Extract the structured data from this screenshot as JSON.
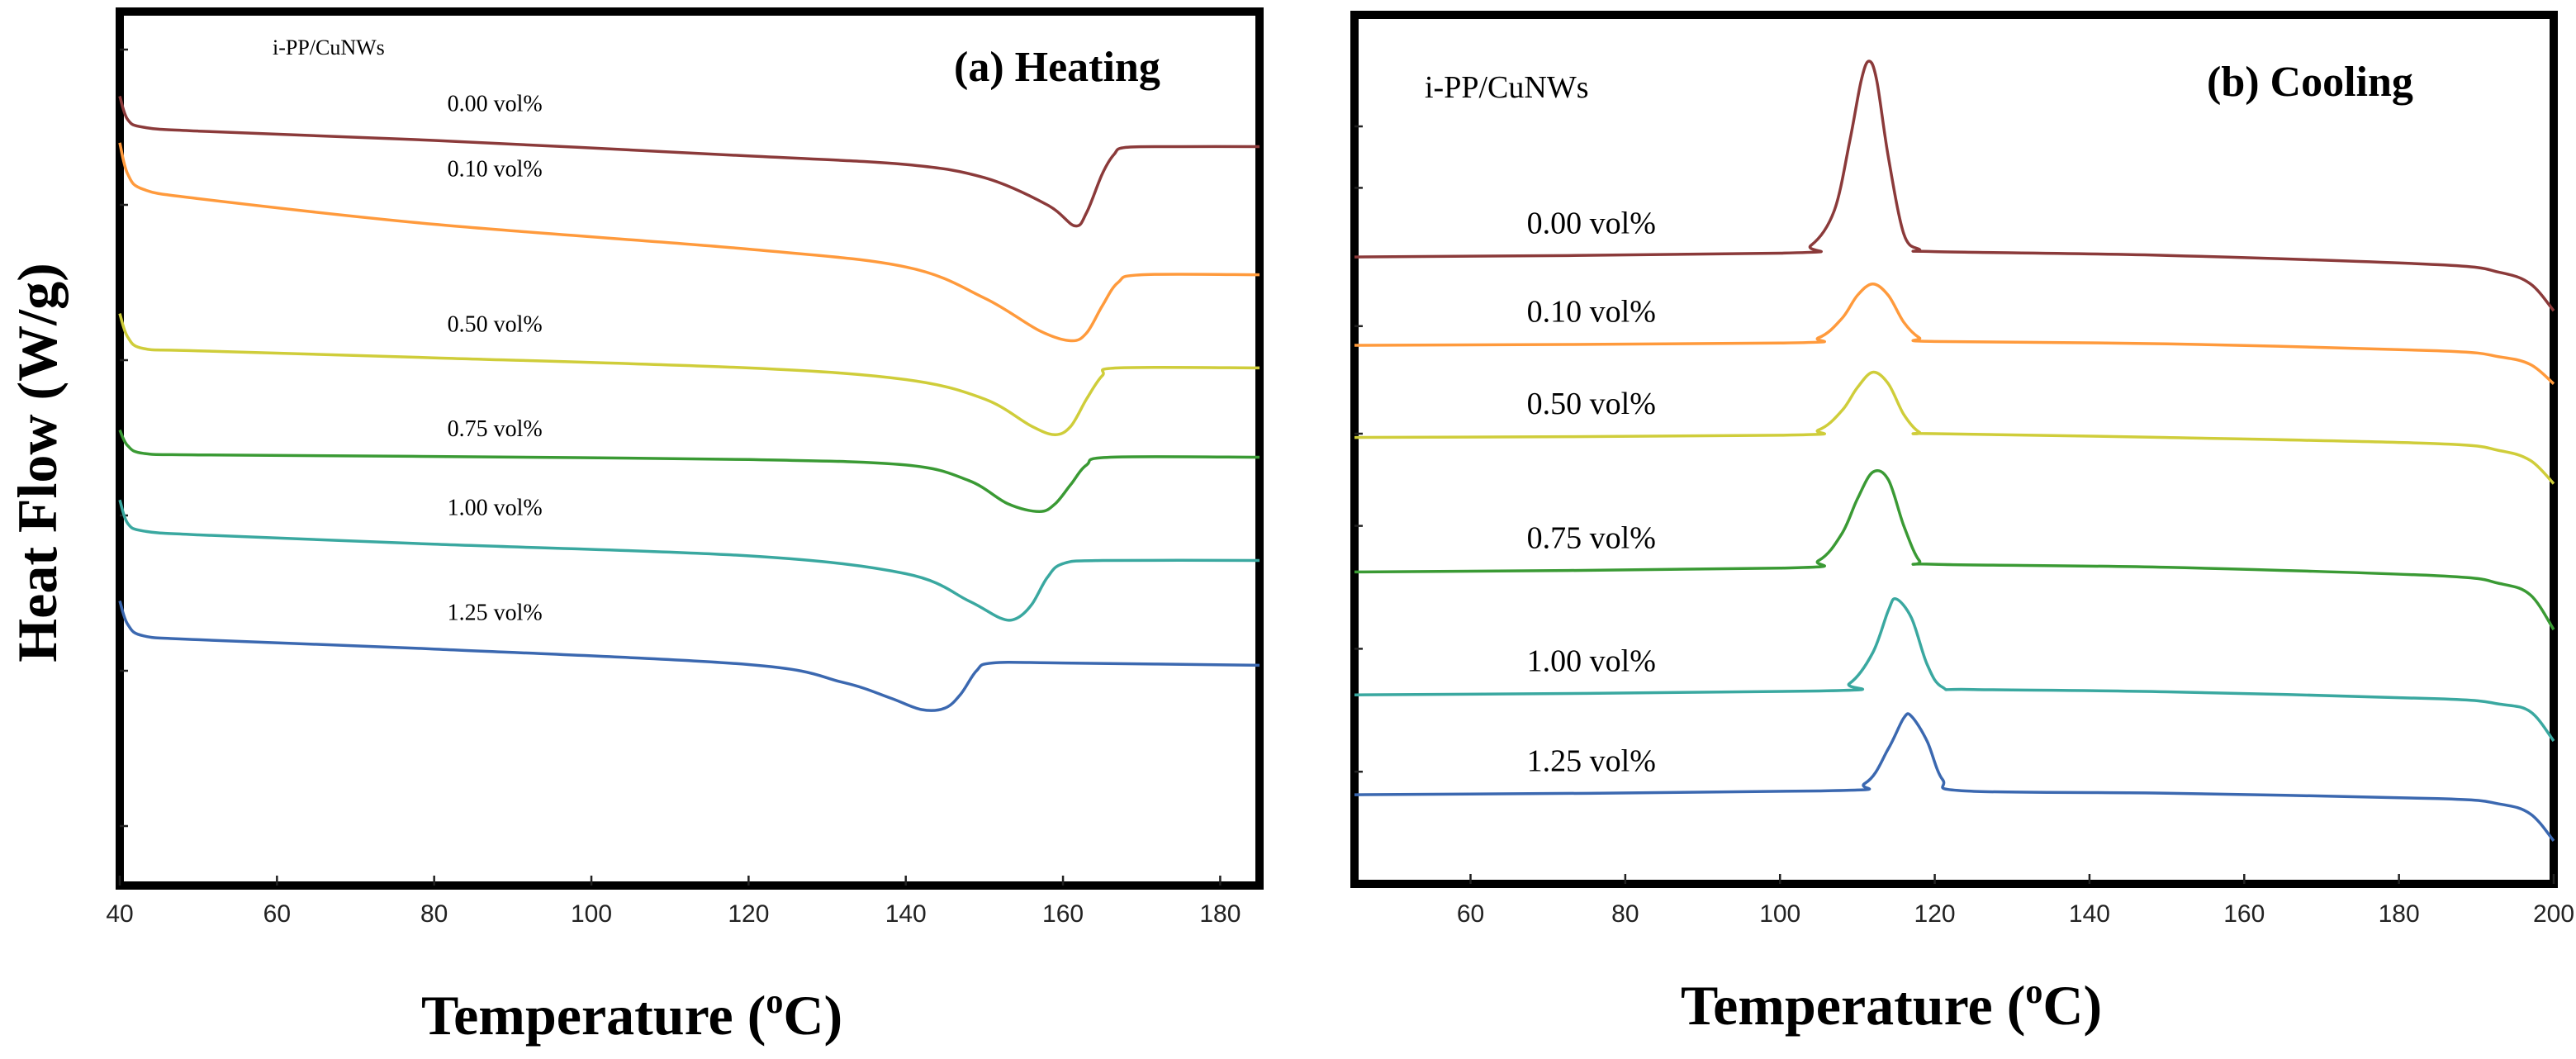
{
  "chart_data": [
    {
      "type": "line",
      "panel": "a",
      "title": "(a) Heating",
      "system_label": "i-PP/CuNWs",
      "xlabel": "Temperature (",
      "xlabel_sup": "o",
      "xlabel_unit": "C)",
      "ylabel": "Heat Flow (W/g)",
      "xlim": [
        40,
        185
      ],
      "x_ticks": [
        "40",
        "60",
        "80",
        "100",
        "120",
        "140",
        "160",
        "180"
      ],
      "x_tick_values": [
        40,
        60,
        80,
        100,
        120,
        140,
        160,
        180
      ],
      "y_units": "relative heat flow (offset, endo down)",
      "ylim": [
        0,
        100
      ],
      "y_minor_ticks": [
        0,
        20,
        40,
        60,
        80,
        100
      ],
      "series": [
        {
          "name": "0.00 vol%",
          "color": "#8b3a3a",
          "points": [
            [
              40,
              94
            ],
            [
              41,
              91
            ],
            [
              43,
              90
            ],
            [
              50,
              89.5
            ],
            [
              80,
              88.3
            ],
            [
              120,
              86.3
            ],
            [
              140,
              85.2
            ],
            [
              150,
              83.5
            ],
            [
              158,
              80
            ],
            [
              161.5,
              77.3
            ],
            [
              163,
              79
            ],
            [
              165,
              84
            ],
            [
              166.5,
              86.5
            ],
            [
              168,
              87.4
            ],
            [
              175,
              87.5
            ],
            [
              185,
              87.5
            ]
          ]
        },
        {
          "name": "0.10 vol%",
          "color": "#ff9a3c",
          "points": [
            [
              40,
              88
            ],
            [
              41,
              84
            ],
            [
              43,
              82
            ],
            [
              50,
              80.8
            ],
            [
              80,
              77.5
            ],
            [
              120,
              74.3
            ],
            [
              140,
              72
            ],
            [
              150,
              68
            ],
            [
              157,
              63.8
            ],
            [
              161,
              62.5
            ],
            [
              163,
              63.5
            ],
            [
              165,
              67
            ],
            [
              167,
              70
            ],
            [
              170,
              71
            ],
            [
              185,
              71
            ]
          ]
        },
        {
          "name": "0.50 vol%",
          "color": "#cfcd3a",
          "points": [
            [
              40,
              66
            ],
            [
              41,
              63
            ],
            [
              43,
              61.5
            ],
            [
              50,
              61.2
            ],
            [
              80,
              60.3
            ],
            [
              120,
              59
            ],
            [
              140,
              57.5
            ],
            [
              150,
              55
            ],
            [
              156,
              51.5
            ],
            [
              159,
              50.4
            ],
            [
              161,
              51.5
            ],
            [
              163,
              55
            ],
            [
              165,
              58
            ],
            [
              167,
              59
            ],
            [
              185,
              59
            ]
          ]
        },
        {
          "name": "0.75 vol%",
          "color": "#3a9a34",
          "points": [
            [
              40,
              51
            ],
            [
              41,
              49
            ],
            [
              43,
              48
            ],
            [
              50,
              47.8
            ],
            [
              80,
              47.6
            ],
            [
              120,
              47.2
            ],
            [
              140,
              46.5
            ],
            [
              148,
              44.5
            ],
            [
              153,
              41.5
            ],
            [
              157,
              40.5
            ],
            [
              159,
              41.5
            ],
            [
              161,
              44
            ],
            [
              163,
              46.5
            ],
            [
              166,
              47.5
            ],
            [
              185,
              47.5
            ]
          ]
        },
        {
          "name": "1.00 vol%",
          "color": "#3aa8a0",
          "points": [
            [
              40,
              42
            ],
            [
              41,
              39
            ],
            [
              43,
              38
            ],
            [
              50,
              37.5
            ],
            [
              80,
              36.3
            ],
            [
              120,
              34.8
            ],
            [
              140,
              32.5
            ],
            [
              148,
              29
            ],
            [
              152,
              26.8
            ],
            [
              154,
              26.7
            ],
            [
              156,
              28.5
            ],
            [
              158,
              32
            ],
            [
              160,
              33.8
            ],
            [
              165,
              34.2
            ],
            [
              185,
              34.2
            ]
          ]
        },
        {
          "name": "1.25 vol%",
          "color": "#3b68b0",
          "points": [
            [
              40,
              29
            ],
            [
              41,
              26
            ],
            [
              43,
              24.5
            ],
            [
              50,
              24
            ],
            [
              80,
              22.8
            ],
            [
              120,
              20.8
            ],
            [
              132,
              18.5
            ],
            [
              138,
              16.5
            ],
            [
              142,
              15
            ],
            [
              145,
              15.2
            ],
            [
              147,
              17
            ],
            [
              149,
              20
            ],
            [
              151,
              21
            ],
            [
              160,
              21
            ],
            [
              185,
              20.7
            ]
          ]
        }
      ],
      "series_label_x": [
        47,
        47,
        47,
        47,
        47,
        47
      ]
    },
    {
      "type": "line",
      "panel": "b",
      "title": "(b) Cooling",
      "system_label": "i-PP/CuNWs",
      "xlabel": "Temperature (",
      "xlabel_sup": "o",
      "xlabel_unit": "C)",
      "xlim": [
        45,
        200
      ],
      "x_ticks": [
        "60",
        "80",
        "100",
        "120",
        "140",
        "160",
        "180",
        "200"
      ],
      "x_tick_values": [
        60,
        80,
        100,
        120,
        140,
        160,
        180,
        200
      ],
      "y_units": "relative heat flow (offset, exo up)",
      "ylim": [
        0,
        100
      ],
      "y_minor_ticks": [
        6,
        22,
        38,
        50,
        64,
        82,
        90
      ],
      "series": [
        {
          "name": "0.00 vol%",
          "color": "#8b3a3a",
          "points": [
            [
              45,
              73
            ],
            [
              100,
              73.5
            ],
            [
              104,
              74.5
            ],
            [
              107,
              79
            ],
            [
              109,
              88
            ],
            [
              110.5,
              96
            ],
            [
              111.5,
              98.5
            ],
            [
              112.5,
              96
            ],
            [
              114,
              86
            ],
            [
              116,
              76
            ],
            [
              118,
              74
            ],
            [
              120,
              73.7
            ],
            [
              150,
              73.2
            ],
            [
              185,
              72
            ],
            [
              193,
              71
            ],
            [
              197,
              69.5
            ],
            [
              200,
              66
            ]
          ]
        },
        {
          "name": "0.10 vol%",
          "color": "#ff9a3c",
          "points": [
            [
              45,
              61.5
            ],
            [
              100,
              61.8
            ],
            [
              105,
              62.5
            ],
            [
              108,
              65
            ],
            [
              110,
              68
            ],
            [
              112,
              69.5
            ],
            [
              114,
              68
            ],
            [
              116,
              64.5
            ],
            [
              118,
              62.5
            ],
            [
              120,
              62
            ],
            [
              150,
              61.7
            ],
            [
              185,
              60.8
            ],
            [
              193,
              60
            ],
            [
              197,
              59
            ],
            [
              200,
              56.5
            ]
          ]
        },
        {
          "name": "0.50 vol%",
          "color": "#cfcd3a",
          "points": [
            [
              45,
              49.5
            ],
            [
              100,
              49.8
            ],
            [
              105,
              50.5
            ],
            [
              108,
              53
            ],
            [
              110,
              56
            ],
            [
              112,
              58
            ],
            [
              114,
              56.5
            ],
            [
              116,
              52.5
            ],
            [
              118,
              50.2
            ],
            [
              120,
              50
            ],
            [
              150,
              49.5
            ],
            [
              185,
              48.7
            ],
            [
              193,
              47.8
            ],
            [
              197,
              46.5
            ],
            [
              200,
              43.5
            ]
          ]
        },
        {
          "name": "0.75 vol%",
          "color": "#3a9a34",
          "points": [
            [
              45,
              32
            ],
            [
              100,
              32.5
            ],
            [
              105,
              33.5
            ],
            [
              108,
              37
            ],
            [
              110,
              41.5
            ],
            [
              112,
              45
            ],
            [
              114,
              44
            ],
            [
              116,
              38
            ],
            [
              118,
              33.5
            ],
            [
              120,
              33
            ],
            [
              150,
              32.6
            ],
            [
              185,
              31.5
            ],
            [
              193,
              30.5
            ],
            [
              197,
              29
            ],
            [
              200,
              24.5
            ]
          ]
        },
        {
          "name": "1.00 vol%",
          "color": "#3aa8a0",
          "points": [
            [
              45,
              16
            ],
            [
              105,
              16.5
            ],
            [
              109,
              17.5
            ],
            [
              112,
              21.5
            ],
            [
              114,
              27
            ],
            [
              115,
              28.5
            ],
            [
              117,
              26
            ],
            [
              119,
              20
            ],
            [
              121,
              17
            ],
            [
              125,
              16.7
            ],
            [
              150,
              16.4
            ],
            [
              185,
              15.5
            ],
            [
              193,
              14.8
            ],
            [
              197,
              13.8
            ],
            [
              200,
              10
            ]
          ]
        },
        {
          "name": "1.25 vol%",
          "color": "#3b68b0",
          "points": [
            [
              45,
              3
            ],
            [
              105,
              3.5
            ],
            [
              111,
              4.5
            ],
            [
              114,
              9
            ],
            [
              116,
              13
            ],
            [
              117,
              13.2
            ],
            [
              119,
              10
            ],
            [
              121,
              5
            ],
            [
              124,
              3.5
            ],
            [
              150,
              3.2
            ],
            [
              185,
              2.5
            ],
            [
              193,
              1.8
            ],
            [
              197,
              0.5
            ],
            [
              200,
              -3
            ]
          ]
        }
      ],
      "series_label_x": [
        55,
        55,
        55,
        55,
        55,
        55
      ]
    }
  ]
}
